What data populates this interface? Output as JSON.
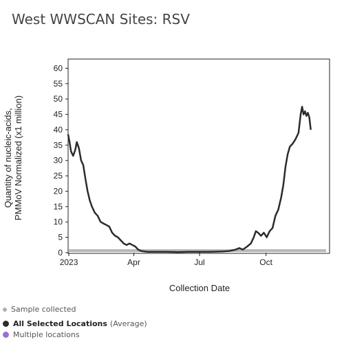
{
  "chart_data": {
    "type": "line",
    "title": "West WWSCAN Sites: RSV",
    "xlabel": "Collection Date",
    "ylabel_line1": "Quantity of nucleic-acids,",
    "ylabel_line2": "PMMoV Normalized (x1 million)",
    "ylim": [
      0,
      63
    ],
    "yticks": [
      0,
      5,
      10,
      15,
      20,
      25,
      30,
      35,
      40,
      45,
      50,
      55,
      60
    ],
    "xlim": [
      "2022-12-31",
      "2023-12-28"
    ],
    "xticks": [
      {
        "label": "2023",
        "date": "2023-01-01"
      },
      {
        "label": "Apr",
        "date": "2023-04-01"
      },
      {
        "label": "Jul",
        "date": "2023-07-01"
      },
      {
        "label": "Oct",
        "date": "2023-10-01"
      }
    ],
    "grid": false,
    "series": [
      {
        "name": "All Selected Locations",
        "color": "#2b2b2b",
        "points": [
          [
            "2022-12-31",
            38.5
          ],
          [
            "2023-01-02",
            36
          ],
          [
            "2023-01-04",
            33
          ],
          [
            "2023-01-07",
            31.5
          ],
          [
            "2023-01-10",
            33.5
          ],
          [
            "2023-01-12",
            36
          ],
          [
            "2023-01-15",
            34
          ],
          [
            "2023-01-18",
            30
          ],
          [
            "2023-01-21",
            28.5
          ],
          [
            "2023-01-24",
            24
          ],
          [
            "2023-01-27",
            20
          ],
          [
            "2023-01-30",
            17
          ],
          [
            "2023-02-02",
            15
          ],
          [
            "2023-02-06",
            13
          ],
          [
            "2023-02-10",
            12
          ],
          [
            "2023-02-14",
            10
          ],
          [
            "2023-02-18",
            9.5
          ],
          [
            "2023-02-22",
            9
          ],
          [
            "2023-02-26",
            8.5
          ],
          [
            "2023-03-02",
            6.5
          ],
          [
            "2023-03-06",
            5.5
          ],
          [
            "2023-03-10",
            5
          ],
          [
            "2023-03-14",
            4
          ],
          [
            "2023-03-18",
            3
          ],
          [
            "2023-03-22",
            2.5
          ],
          [
            "2023-03-26",
            3
          ],
          [
            "2023-03-30",
            2.5
          ],
          [
            "2023-04-03",
            2
          ],
          [
            "2023-04-07",
            1
          ],
          [
            "2023-04-12",
            0.5
          ],
          [
            "2023-04-20",
            0.3
          ],
          [
            "2023-05-01",
            0.3
          ],
          [
            "2023-05-15",
            0.3
          ],
          [
            "2023-06-01",
            0.2
          ],
          [
            "2023-06-15",
            0.3
          ],
          [
            "2023-07-01",
            0.3
          ],
          [
            "2023-07-15",
            0.3
          ],
          [
            "2023-08-01",
            0.4
          ],
          [
            "2023-08-10",
            0.5
          ],
          [
            "2023-08-20",
            1
          ],
          [
            "2023-08-25",
            1.5
          ],
          [
            "2023-08-30",
            1
          ],
          [
            "2023-09-05",
            2
          ],
          [
            "2023-09-10",
            3
          ],
          [
            "2023-09-14",
            5
          ],
          [
            "2023-09-17",
            7
          ],
          [
            "2023-09-20",
            6.5
          ],
          [
            "2023-09-24",
            5.5
          ],
          [
            "2023-09-28",
            6.5
          ],
          [
            "2023-10-02",
            5
          ],
          [
            "2023-10-06",
            7
          ],
          [
            "2023-10-10",
            8
          ],
          [
            "2023-10-14",
            12
          ],
          [
            "2023-10-18",
            14
          ],
          [
            "2023-10-22",
            18
          ],
          [
            "2023-10-25",
            22
          ],
          [
            "2023-10-28",
            28
          ],
          [
            "2023-10-31",
            32
          ],
          [
            "2023-11-03",
            34.5
          ],
          [
            "2023-11-07",
            35.5
          ],
          [
            "2023-11-11",
            37
          ],
          [
            "2023-11-15",
            39
          ],
          [
            "2023-11-18",
            45
          ],
          [
            "2023-11-20",
            47.5
          ],
          [
            "2023-11-22",
            45
          ],
          [
            "2023-11-24",
            46
          ],
          [
            "2023-11-26",
            44.5
          ],
          [
            "2023-11-28",
            45.5
          ],
          [
            "2023-11-30",
            44
          ],
          [
            "2023-12-02",
            40
          ]
        ]
      }
    ]
  },
  "legend": {
    "sample_collected": "Sample collected",
    "all_selected": "All Selected Locations",
    "average": "(Average)",
    "multiple": "Multiple locations",
    "colors": {
      "sample": "#b0b0b0",
      "all": "#2b2b2b",
      "multiple": "#9b6fd6"
    }
  }
}
